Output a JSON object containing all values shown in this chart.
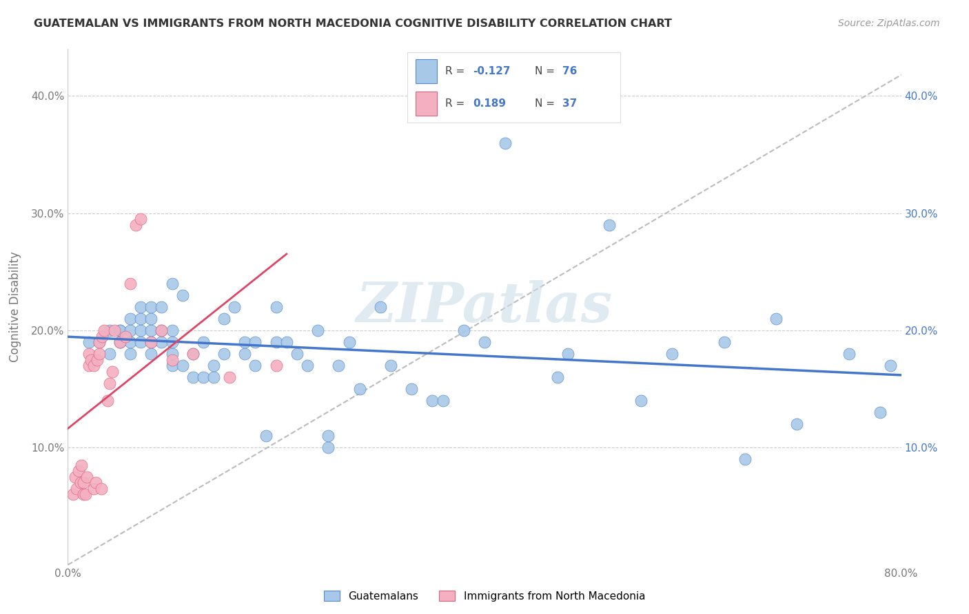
{
  "title": "GUATEMALAN VS IMMIGRANTS FROM NORTH MACEDONIA COGNITIVE DISABILITY CORRELATION CHART",
  "source": "Source: ZipAtlas.com",
  "ylabel": "Cognitive Disability",
  "xlim": [
    0.0,
    0.8
  ],
  "ylim": [
    0.0,
    0.44
  ],
  "yticks": [
    0.1,
    0.2,
    0.3,
    0.4
  ],
  "ytick_labels": [
    "10.0%",
    "20.0%",
    "30.0%",
    "40.0%"
  ],
  "xtick_positions": [
    0.0,
    0.8
  ],
  "xtick_labels": [
    "0.0%",
    "80.0%"
  ],
  "blue_R": -0.127,
  "blue_N": 76,
  "pink_R": 0.189,
  "pink_N": 37,
  "blue_color": "#a8c8e8",
  "pink_color": "#f4b0c0",
  "blue_edge_color": "#5588cc",
  "pink_edge_color": "#e06080",
  "blue_line_color": "#4477cc",
  "pink_line_color": "#dd4466",
  "dashed_line_color": "#bbbbbb",
  "watermark": "ZIPatlas",
  "blue_scatter_x": [
    0.02,
    0.03,
    0.04,
    0.04,
    0.05,
    0.05,
    0.05,
    0.05,
    0.06,
    0.06,
    0.06,
    0.06,
    0.07,
    0.07,
    0.07,
    0.07,
    0.08,
    0.08,
    0.08,
    0.08,
    0.08,
    0.09,
    0.09,
    0.09,
    0.1,
    0.1,
    0.1,
    0.1,
    0.1,
    0.11,
    0.11,
    0.12,
    0.12,
    0.13,
    0.13,
    0.14,
    0.14,
    0.15,
    0.15,
    0.16,
    0.17,
    0.17,
    0.18,
    0.18,
    0.19,
    0.2,
    0.2,
    0.21,
    0.22,
    0.23,
    0.24,
    0.25,
    0.25,
    0.26,
    0.27,
    0.28,
    0.3,
    0.31,
    0.33,
    0.35,
    0.36,
    0.38,
    0.4,
    0.42,
    0.47,
    0.48,
    0.52,
    0.55,
    0.58,
    0.63,
    0.65,
    0.68,
    0.7,
    0.75,
    0.78,
    0.79
  ],
  "blue_scatter_y": [
    0.19,
    0.19,
    0.18,
    0.2,
    0.2,
    0.19,
    0.19,
    0.2,
    0.18,
    0.19,
    0.2,
    0.21,
    0.19,
    0.2,
    0.21,
    0.22,
    0.18,
    0.19,
    0.2,
    0.21,
    0.22,
    0.19,
    0.2,
    0.22,
    0.17,
    0.18,
    0.19,
    0.2,
    0.24,
    0.17,
    0.23,
    0.16,
    0.18,
    0.16,
    0.19,
    0.16,
    0.17,
    0.18,
    0.21,
    0.22,
    0.18,
    0.19,
    0.17,
    0.19,
    0.11,
    0.19,
    0.22,
    0.19,
    0.18,
    0.17,
    0.2,
    0.1,
    0.11,
    0.17,
    0.19,
    0.15,
    0.22,
    0.17,
    0.15,
    0.14,
    0.14,
    0.2,
    0.19,
    0.36,
    0.16,
    0.18,
    0.29,
    0.14,
    0.18,
    0.19,
    0.09,
    0.21,
    0.12,
    0.18,
    0.13,
    0.17
  ],
  "pink_scatter_x": [
    0.005,
    0.007,
    0.008,
    0.01,
    0.012,
    0.013,
    0.015,
    0.015,
    0.017,
    0.018,
    0.02,
    0.02,
    0.022,
    0.025,
    0.025,
    0.027,
    0.028,
    0.03,
    0.03,
    0.032,
    0.033,
    0.035,
    0.038,
    0.04,
    0.043,
    0.045,
    0.05,
    0.055,
    0.06,
    0.065,
    0.07,
    0.08,
    0.09,
    0.1,
    0.12,
    0.155,
    0.2
  ],
  "pink_scatter_y": [
    0.06,
    0.075,
    0.065,
    0.08,
    0.07,
    0.085,
    0.06,
    0.07,
    0.06,
    0.075,
    0.17,
    0.18,
    0.175,
    0.17,
    0.065,
    0.07,
    0.175,
    0.18,
    0.19,
    0.065,
    0.195,
    0.2,
    0.14,
    0.155,
    0.165,
    0.2,
    0.19,
    0.195,
    0.24,
    0.29,
    0.295,
    0.19,
    0.2,
    0.175,
    0.18,
    0.16,
    0.17
  ],
  "legend_blue_label": "Guatemalans",
  "legend_pink_label": "Immigrants from North Macedonia"
}
